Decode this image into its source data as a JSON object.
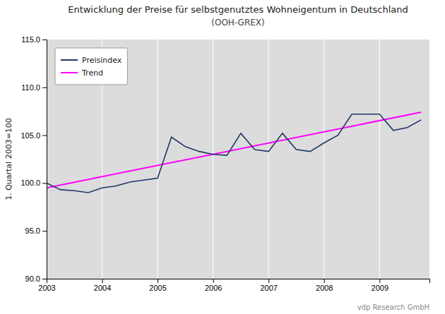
{
  "chart_data": {
    "type": "line",
    "title": "Entwicklung der Preise für selbstgenutztes Wohneigentum in Deutschland",
    "subtitle": "(OOH-GREX)",
    "y_label": "1. Quartal 2003=100",
    "annotations": [
      "vdp Research GmbH"
    ],
    "series": [
      {
        "name": "Preisindex",
        "color": "#1f3864",
        "x": [
          2003.0,
          2003.25,
          2003.5,
          2003.75,
          2004.0,
          2004.25,
          2004.5,
          2004.75,
          2005.0,
          2005.25,
          2005.5,
          2005.75,
          2006.0,
          2006.25,
          2006.5,
          2006.75,
          2007.0,
          2007.25,
          2007.5,
          2007.75,
          2008.0,
          2008.25,
          2008.5,
          2008.75,
          2009.0,
          2009.25,
          2009.5,
          2009.75
        ],
        "values": [
          100.0,
          99.3,
          99.2,
          99.0,
          99.5,
          99.7,
          100.1,
          100.3,
          100.5,
          104.8,
          103.8,
          103.3,
          103.0,
          102.9,
          105.2,
          103.5,
          103.3,
          105.2,
          103.5,
          103.3,
          104.2,
          105.0,
          107.2,
          107.2,
          107.2,
          105.5,
          105.8,
          106.6
        ]
      },
      {
        "name": "Trend",
        "color": "#ff00ff",
        "x": [
          2003.0,
          2009.75
        ],
        "values": [
          99.5,
          107.4
        ]
      }
    ],
    "xlim": [
      2003.0,
      2009.9
    ],
    "xticks": [
      2003,
      2004,
      2005,
      2006,
      2007,
      2008,
      2009
    ],
    "ylim": [
      90.0,
      115.0
    ],
    "yticks": [
      {
        "value": 90.0,
        "label": "90.0"
      },
      {
        "value": 95.0,
        "label": "95.0"
      },
      {
        "value": 100.0,
        "label": "100.0"
      },
      {
        "value": 105.0,
        "label": "105.0"
      },
      {
        "value": 110.0,
        "label": "110.0"
      },
      {
        "value": 115.0,
        "label": "115.0"
      }
    ],
    "grid": "x",
    "legend": "top-left"
  }
}
